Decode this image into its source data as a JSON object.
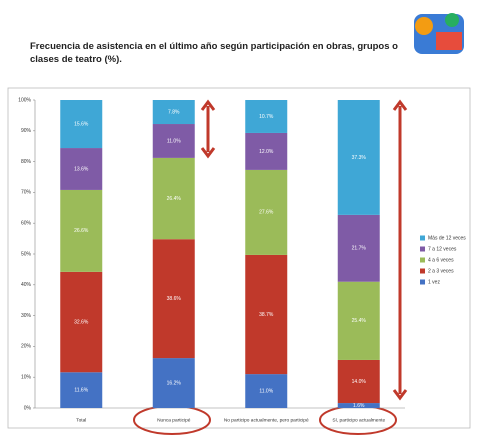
{
  "chart_data": {
    "type": "stacked_bar",
    "title": "Frecuencia de asistencia en el último año según participación en obras, grupos o clases de teatro (%).",
    "categories": [
      "Total",
      "Nunca participé",
      "No participo actualmente, pero participé",
      "Sí, participo actualmente"
    ],
    "series": [
      {
        "name": "1 vez",
        "color": "#4472c4",
        "values": [
          11.6,
          16.2,
          11.0,
          1.6
        ],
        "value_labels": [
          "11.6%",
          "16.2%",
          "11.0%",
          "1.6%"
        ]
      },
      {
        "name": "2 a 3 veces",
        "color": "#c0392b",
        "values": [
          32.6,
          38.6,
          38.7,
          14.0
        ],
        "value_labels": [
          "32.6%",
          "38.6%",
          "38.7%",
          "14.0%"
        ]
      },
      {
        "name": "4 a 6 veces",
        "color": "#9bbb59",
        "values": [
          26.6,
          26.4,
          27.6,
          25.4
        ],
        "value_labels": [
          "26.6%",
          "26.4%",
          "27.6%",
          "25.4%"
        ]
      },
      {
        "name": "7 a 12 veces",
        "color": "#7f5ba6",
        "values": [
          13.6,
          11.0,
          12.0,
          21.7
        ],
        "value_labels": [
          "13.6%",
          "11.0%",
          "12.0%",
          "21.7%"
        ]
      },
      {
        "name": "Más de 12 veces",
        "color": "#3fa7d6",
        "values": [
          15.6,
          7.8,
          10.7,
          37.3
        ],
        "value_labels": [
          "15.6%",
          "7.8%",
          "10.7%",
          "37.3%"
        ]
      }
    ],
    "ylim": [
      0,
      100
    ],
    "yticks": [
      {
        "value": 0,
        "label": "0%"
      },
      {
        "value": 10,
        "label": "10%"
      },
      {
        "value": 20,
        "label": "20%"
      },
      {
        "value": 30,
        "label": "30%"
      },
      {
        "value": 40,
        "label": "40%"
      },
      {
        "value": 50,
        "label": "50%"
      },
      {
        "value": 60,
        "label": "60%"
      },
      {
        "value": 70,
        "label": "70%"
      },
      {
        "value": 80,
        "label": "80%"
      },
      {
        "value": 90,
        "label": "90%"
      },
      {
        "value": 100,
        "label": "100%"
      }
    ],
    "grid": false
  }
}
